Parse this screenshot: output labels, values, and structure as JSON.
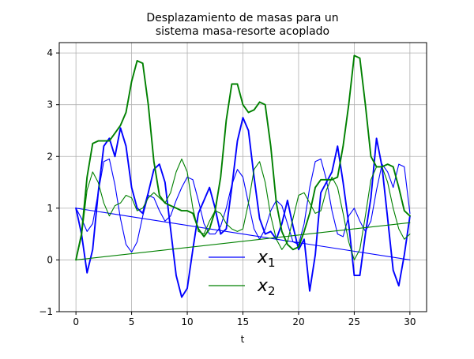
{
  "chart_data": {
    "type": "line",
    "title": "Desplazamiento de masas para un\nsistema masa-resorte acoplado",
    "xlabel": "t",
    "ylabel": "",
    "xlim": [
      -1.5,
      31.5
    ],
    "ylim": [
      -1.0,
      4.2
    ],
    "xticks": [
      0,
      5,
      10,
      15,
      20,
      25,
      30
    ],
    "yticks": [
      -1,
      0,
      1,
      2,
      3,
      4
    ],
    "grid": true,
    "legend": {
      "placement": "bottom-center"
    },
    "colors": {
      "x1": "#0000ff",
      "x2": "#008000"
    },
    "series": [
      {
        "name": "x1",
        "name_main": "x",
        "name_sub": "1",
        "color": "#0000ff",
        "segments": [
          {
            "note_style": "thick",
            "x": [
              0,
              0.5,
              1,
              1.5,
              2,
              2.5,
              3,
              3.5,
              4,
              4.5,
              5,
              5.5,
              6,
              6.5,
              7,
              7.5,
              8,
              8.5,
              9,
              9.5,
              10,
              10.5,
              11,
              11.5,
              12,
              12.5,
              13,
              13.5,
              14,
              14.5,
              15,
              15.5,
              16,
              16.5,
              17,
              17.5,
              18,
              18.5,
              19,
              19.5,
              20,
              20.5,
              21,
              21.5,
              22,
              22.5,
              23,
              23.5,
              24,
              24.5,
              25,
              25.5,
              26,
              26.5,
              27,
              27.5,
              28,
              28.5,
              29,
              29.5,
              30
            ],
            "y": [
              1.0,
              0.5,
              -0.25,
              0.2,
              1.3,
              2.2,
              2.35,
              2.0,
              2.55,
              2.2,
              1.4,
              1.0,
              0.9,
              1.3,
              1.75,
              1.85,
              1.5,
              0.6,
              -0.3,
              -0.72,
              -0.55,
              0.2,
              0.9,
              1.15,
              1.4,
              1.0,
              0.5,
              0.6,
              1.4,
              2.3,
              2.75,
              2.5,
              1.6,
              0.8,
              0.5,
              0.55,
              0.4,
              0.7,
              1.15,
              0.65,
              0.2,
              0.4,
              -0.6,
              0.1,
              1.3,
              1.5,
              1.7,
              2.2,
              1.5,
              0.7,
              -0.3,
              -0.3,
              0.5,
              1.2,
              2.35,
              1.8,
              0.8,
              -0.2,
              -0.5,
              0.1,
              0.85
            ]
          },
          {
            "note_style": "thin",
            "x": [
              0,
              0.5,
              1,
              1.5,
              2,
              2.5,
              3,
              3.5,
              4,
              4.5,
              5,
              5.5,
              6,
              6.5,
              7,
              7.5,
              8,
              8.5,
              9,
              9.5,
              10,
              10.5,
              11,
              11.5,
              12,
              12.5,
              13,
              13.5,
              14,
              14.5,
              15,
              15.5,
              16,
              16.5,
              17,
              17.5,
              18,
              18.5,
              19,
              19.5,
              20,
              20.5,
              21,
              21.5,
              22,
              22.5,
              23,
              23.5,
              24,
              24.5,
              25,
              25.5,
              26,
              26.5,
              27,
              27.5,
              28,
              28.5,
              29,
              29.5,
              30
            ],
            "y": [
              1.0,
              0.8,
              0.55,
              0.7,
              1.3,
              1.9,
              1.95,
              1.45,
              0.8,
              0.3,
              0.15,
              0.35,
              0.85,
              1.25,
              1.2,
              0.95,
              0.75,
              0.85,
              1.15,
              1.4,
              1.6,
              1.55,
              1.15,
              0.7,
              0.5,
              0.5,
              0.65,
              1.0,
              1.45,
              1.75,
              1.6,
              1.1,
              0.6,
              0.4,
              0.6,
              0.95,
              1.15,
              1.05,
              0.7,
              0.35,
              0.3,
              0.7,
              1.4,
              1.9,
              1.95,
              1.55,
              0.95,
              0.5,
              0.45,
              0.85,
              1.0,
              0.75,
              0.55,
              0.75,
              1.35,
              1.85,
              1.7,
              1.4,
              1.85,
              1.8,
              0.9
            ]
          },
          {
            "note_style": "thin",
            "x": [
              0,
              30
            ],
            "y": [
              1.0,
              0.0
            ]
          }
        ]
      },
      {
        "name": "x2",
        "name_main": "x",
        "name_sub": "2",
        "color": "#008000",
        "segments": [
          {
            "note_style": "thick",
            "x": [
              0,
              0.5,
              1,
              1.5,
              2,
              2.5,
              3,
              3.5,
              4,
              4.5,
              5,
              5.5,
              6,
              6.5,
              7,
              7.5,
              8,
              8.5,
              9,
              9.5,
              10,
              10.5,
              11,
              11.5,
              12,
              12.5,
              13,
              13.5,
              14,
              14.5,
              15,
              15.5,
              16,
              16.5,
              17,
              17.5,
              18,
              18.5,
              19,
              19.5,
              20,
              20.5,
              21,
              21.5,
              22,
              22.5,
              23,
              23.5,
              24,
              24.5,
              25,
              25.5,
              26,
              26.5,
              27,
              27.5,
              28,
              28.5,
              29,
              29.5,
              30
            ],
            "y": [
              0.0,
              0.5,
              1.6,
              2.25,
              2.3,
              2.3,
              2.3,
              2.45,
              2.6,
              2.85,
              3.45,
              3.85,
              3.8,
              3.0,
              1.9,
              1.25,
              1.1,
              1.05,
              1.0,
              0.95,
              0.95,
              0.9,
              0.6,
              0.45,
              0.6,
              0.95,
              1.6,
              2.7,
              3.4,
              3.4,
              3.0,
              2.85,
              2.9,
              3.05,
              3.0,
              2.2,
              1.1,
              0.55,
              0.3,
              0.2,
              0.25,
              0.55,
              0.9,
              1.4,
              1.55,
              1.55,
              1.55,
              1.6,
              2.2,
              3.0,
              3.95,
              3.9,
              3.0,
              2.0,
              1.8,
              1.8,
              1.85,
              1.8,
              1.4,
              0.95,
              0.85
            ]
          },
          {
            "note_style": "thin",
            "x": [
              0,
              0.5,
              1,
              1.5,
              2,
              2.5,
              3,
              3.5,
              4,
              4.5,
              5,
              5.5,
              6,
              6.5,
              7,
              7.5,
              8,
              8.5,
              9,
              9.5,
              10,
              10.5,
              11,
              11.5,
              12,
              12.5,
              13,
              13.5,
              14,
              14.5,
              15,
              15.5,
              16,
              16.5,
              17,
              17.5,
              18,
              18.5,
              19,
              19.5,
              20,
              20.5,
              21,
              21.5,
              22,
              22.5,
              23,
              23.5,
              24,
              24.5,
              25,
              25.5,
              26,
              26.5,
              27,
              27.5,
              28,
              28.5,
              29,
              29.5,
              30
            ],
            "y": [
              0.0,
              0.45,
              1.35,
              1.7,
              1.5,
              1.1,
              0.85,
              1.05,
              1.1,
              1.25,
              1.2,
              0.95,
              1.0,
              1.2,
              1.3,
              1.2,
              1.1,
              1.3,
              1.7,
              1.95,
              1.7,
              1.0,
              0.55,
              0.5,
              0.75,
              0.95,
              0.9,
              0.7,
              0.6,
              0.55,
              0.6,
              1.1,
              1.75,
              1.9,
              1.5,
              0.85,
              0.4,
              0.2,
              0.35,
              0.8,
              1.25,
              1.3,
              1.1,
              0.9,
              0.95,
              1.35,
              1.6,
              1.4,
              0.9,
              0.35,
              0.0,
              0.2,
              0.85,
              1.55,
              1.8,
              1.8,
              1.5,
              1.0,
              0.6,
              0.4,
              0.5
            ]
          },
          {
            "note_style": "thin",
            "x": [
              0,
              30
            ],
            "y": [
              0.0,
              0.72
            ]
          }
        ]
      }
    ]
  }
}
